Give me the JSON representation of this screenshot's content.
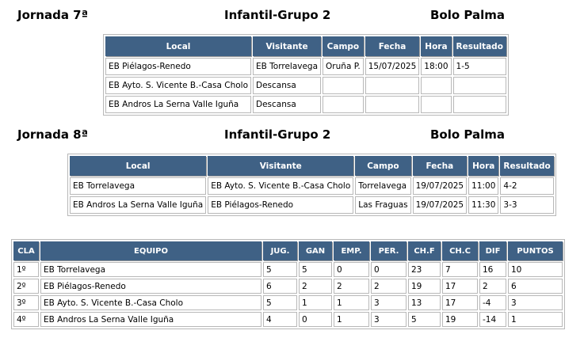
{
  "round7": {
    "title": "Jornada 7ª",
    "group": "Infantil-Grupo 2",
    "sport": "Bolo Palma",
    "headers": [
      "Local",
      "Visitante",
      "Campo",
      "Fecha",
      "Hora",
      "Resultado"
    ],
    "rows": [
      [
        "EB Piélagos-Renedo",
        "EB Torrelavega",
        "Oruña P.",
        "15/07/2025",
        "18:00",
        "1-5"
      ],
      [
        "EB Ayto. S. Vicente B.-Casa Cholo",
        "Descansa",
        "",
        "",
        "",
        ""
      ],
      [
        "EB Andros La Serna Valle Iguña",
        "Descansa",
        "",
        "",
        "",
        ""
      ]
    ]
  },
  "round8": {
    "title": "Jornada 8ª",
    "group": "Infantil-Grupo 2",
    "sport": "Bolo Palma",
    "headers": [
      "Local",
      "Visitante",
      "Campo",
      "Fecha",
      "Hora",
      "Resultado"
    ],
    "rows": [
      [
        "EB Torrelavega",
        "EB Ayto. S. Vicente B.-Casa Cholo",
        "Torrelavega",
        "19/07/2025",
        "11:00",
        "4-2"
      ],
      [
        "EB Andros La Serna Valle Iguña",
        "EB Piélagos-Renedo",
        "Las Fraguas",
        "19/07/2025",
        "11:30",
        "3-3"
      ]
    ]
  },
  "standings": {
    "headers": [
      "CLA",
      "EQUIPO",
      "JUG.",
      "GAN",
      "EMP.",
      "PER.",
      "CH.F",
      "CH.C",
      "DIF",
      "PUNTOS"
    ],
    "rows": [
      [
        "1º",
        "EB Torrelavega",
        "5",
        "5",
        "0",
        "0",
        "23",
        "7",
        "16",
        "10"
      ],
      [
        "2º",
        "EB Piélagos-Renedo",
        "6",
        "2",
        "2",
        "2",
        "19",
        "17",
        "2",
        "6"
      ],
      [
        "3º",
        "EB Ayto. S. Vicente B.-Casa Cholo",
        "5",
        "1",
        "1",
        "3",
        "13",
        "17",
        "-4",
        "3"
      ],
      [
        "4º",
        "EB Andros La Serna Valle Iguña",
        "4",
        "0",
        "1",
        "3",
        "5",
        "19",
        "-14",
        "1"
      ]
    ]
  }
}
